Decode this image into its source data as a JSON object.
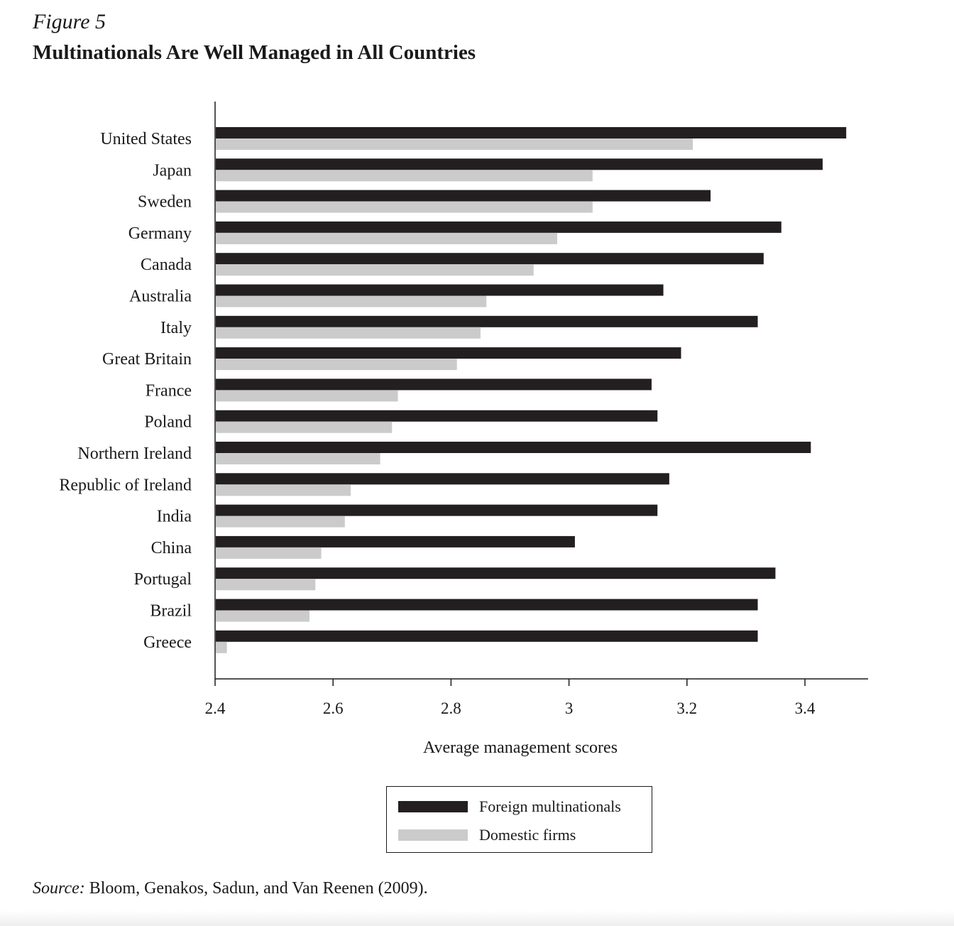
{
  "figure": {
    "label": "Figure 5",
    "title": "Multinationals Are Well Managed in All Countries"
  },
  "source": {
    "label": "Source:",
    "text": "Bloom, Genakos, Sadun, and Van Reenen (2009)."
  },
  "colors": {
    "foreign": "#231f20",
    "domestic": "#cbcbcb"
  },
  "chart_data": {
    "type": "bar",
    "orientation": "horizontal",
    "title": "Multinationals Are Well Managed in All Countries",
    "xlabel": "Average management scores",
    "ylabel": "",
    "xlim": [
      2.4,
      3.5
    ],
    "xticks": [
      2.4,
      2.6,
      2.8,
      3.0,
      3.2,
      3.4
    ],
    "xtick_labels": [
      "2.4",
      "2.6",
      "2.8",
      "3",
      "3.2",
      "3.4"
    ],
    "grid": false,
    "legend_position": "bottom-center",
    "categories": [
      "United States",
      "Japan",
      "Sweden",
      "Germany",
      "Canada",
      "Australia",
      "Italy",
      "Great Britain",
      "France",
      "Poland",
      "Northern Ireland",
      "Republic of Ireland",
      "India",
      "China",
      "Portugal",
      "Brazil",
      "Greece"
    ],
    "series": [
      {
        "name": "Foreign multinationals",
        "values": [
          3.47,
          3.43,
          3.24,
          3.36,
          3.33,
          3.16,
          3.32,
          3.19,
          3.14,
          3.15,
          3.41,
          3.17,
          3.15,
          3.01,
          3.35,
          3.32,
          3.32
        ]
      },
      {
        "name": "Domestic firms",
        "values": [
          3.21,
          3.04,
          3.04,
          2.98,
          2.94,
          2.86,
          2.85,
          2.81,
          2.71,
          2.7,
          2.68,
          2.63,
          2.62,
          2.58,
          2.57,
          2.56,
          2.42
        ]
      }
    ]
  }
}
